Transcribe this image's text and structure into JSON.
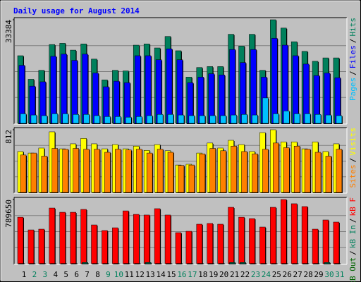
{
  "chart_data": [
    {
      "type": "bar",
      "title": "Daily usage for August 2014",
      "categories": [
        "1",
        "2",
        "3",
        "4",
        "5",
        "6",
        "7",
        "8",
        "9",
        "10",
        "11",
        "12",
        "13",
        "14",
        "15",
        "16",
        "17",
        "18",
        "19",
        "20",
        "21",
        "22",
        "23",
        "24",
        "25",
        "26",
        "27",
        "28",
        "29",
        "30",
        "31"
      ],
      "category_colors": [
        "#000000",
        "#00805c",
        "#00805c",
        "#000000",
        "#000000",
        "#000000",
        "#000000",
        "#000000",
        "#00805c",
        "#00805c",
        "#000000",
        "#000000",
        "#000000",
        "#000000",
        "#000000",
        "#00805c",
        "#00805c",
        "#000000",
        "#000000",
        "#000000",
        "#000000",
        "#000000",
        "#00805c",
        "#00805c",
        "#000000",
        "#000000",
        "#000000",
        "#000000",
        "#000000",
        "#00805c",
        "#00805c"
      ],
      "legend_separator": "/",
      "ylim": [
        0,
        33384
      ],
      "yticks": [
        33384
      ],
      "series": [
        {
          "name": "Hits",
          "color": "#00805c",
          "values": [
            21800,
            14200,
            17100,
            25400,
            25800,
            23600,
            25600,
            20700,
            14000,
            17100,
            16900,
            25200,
            25600,
            24300,
            28000,
            23400,
            14900,
            18000,
            18300,
            18300,
            28700,
            24900,
            28700,
            17100,
            33384,
            30700,
            26300,
            23200,
            20000,
            21100,
            21100
          ]
        },
        {
          "name": "Files",
          "color": "#0000ff",
          "values": [
            18700,
            12000,
            13400,
            21600,
            22300,
            20300,
            22300,
            16200,
            11800,
            13600,
            13100,
            21800,
            21800,
            20500,
            24000,
            20500,
            13100,
            14900,
            16000,
            15600,
            23800,
            19600,
            23800,
            14900,
            27400,
            25200,
            21800,
            19100,
            15400,
            16200,
            14700
          ]
        },
        {
          "name": "Pages",
          "color": "#00c0ff",
          "values": [
            3100,
            2700,
            2500,
            3100,
            3100,
            2900,
            2900,
            2500,
            2200,
            2200,
            2000,
            2200,
            2500,
            2900,
            2900,
            2700,
            2500,
            2500,
            2500,
            2500,
            2700,
            2900,
            2700,
            8200,
            3100,
            4000,
            3100,
            3100,
            2900,
            2700,
            2500
          ]
        }
      ]
    },
    {
      "type": "bar",
      "ylim": [
        0,
        812
      ],
      "yticks": [
        812
      ],
      "series": [
        {
          "name": "Visits",
          "color": "#ffff00",
          "values": [
            530,
            510,
            575,
            785,
            565,
            630,
            700,
            630,
            565,
            620,
            565,
            600,
            545,
            620,
            540,
            355,
            365,
            510,
            640,
            575,
            675,
            620,
            530,
            775,
            812,
            655,
            655,
            565,
            655,
            530,
            630
          ]
        },
        {
          "name": "Sites",
          "color": "#ff8000",
          "values": [
            485,
            510,
            470,
            570,
            560,
            570,
            560,
            560,
            520,
            560,
            550,
            560,
            510,
            560,
            520,
            350,
            355,
            500,
            570,
            540,
            600,
            530,
            500,
            560,
            640,
            580,
            600,
            560,
            520,
            470,
            560
          ]
        }
      ]
    },
    {
      "type": "bar",
      "ylim": [
        0,
        789650
      ],
      "yticks": [
        789650
      ],
      "series": [
        {
          "name": "kB F",
          "color": "#ff0000",
          "values": [
            572000,
            416000,
            425000,
            685000,
            633000,
            633000,
            668000,
            477000,
            408000,
            442000,
            650000,
            607000,
            599000,
            677000,
            599000,
            382000,
            399000,
            486000,
            495000,
            486000,
            694000,
            572000,
            555000,
            451000,
            694000,
            789650,
            738000,
            703000,
            425000,
            538000,
            512000
          ]
        },
        {
          "name": "kB In",
          "color": "#00805c",
          "values": [
            2000,
            2000,
            2000,
            2000,
            2000,
            2000,
            15000,
            2000,
            2000,
            2000,
            2000,
            2000,
            15000,
            2000,
            2000,
            2000,
            2000,
            2000,
            2000,
            2000,
            15000,
            15000,
            2000,
            2000,
            2000,
            2000,
            2000,
            2000,
            2000,
            15000,
            2000
          ]
        },
        {
          "name": "kB Out",
          "color": "#006400",
          "values": [
            0,
            0,
            0,
            0,
            0,
            0,
            0,
            0,
            0,
            0,
            0,
            0,
            0,
            0,
            0,
            0,
            0,
            0,
            0,
            0,
            0,
            0,
            0,
            0,
            0,
            0,
            0,
            0,
            0,
            0,
            0
          ]
        }
      ]
    }
  ]
}
